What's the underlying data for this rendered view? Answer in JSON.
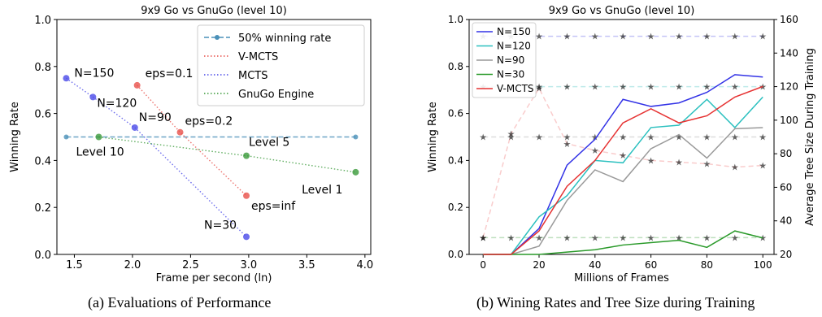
{
  "chart_data": [
    {
      "type": "scatter",
      "title": "9x9 Go vs GnuGo (level 10)",
      "xlabel": "Frame per second (ln)",
      "ylabel": "Winning Rate",
      "xlim": [
        1.35,
        4.05
      ],
      "ylim": [
        0.0,
        1.0
      ],
      "xticks": [
        "1.5",
        "2.0",
        "2.5",
        "3.0",
        "3.5",
        "4.0"
      ],
      "yticks": [
        "0.0",
        "0.2",
        "0.4",
        "0.6",
        "0.8",
        "1.0"
      ],
      "legend": "top-right",
      "series": [
        {
          "name": "50% winning rate",
          "color": "#4a90b8",
          "style": "dashed",
          "points": [
            [
              1.43,
              0.5
            ],
            [
              3.92,
              0.5
            ]
          ]
        },
        {
          "name": "V-MCTS",
          "color": "#e8504a",
          "style": "dotted",
          "points": [
            [
              2.04,
              0.72,
              "eps=0.1"
            ],
            [
              2.41,
              0.52,
              "eps=0.2"
            ],
            [
              2.98,
              0.25,
              "eps=inf"
            ]
          ]
        },
        {
          "name": "MCTS",
          "color": "#4a4ae8",
          "style": "dotted",
          "points": [
            [
              1.43,
              0.75,
              "N=150"
            ],
            [
              1.66,
              0.67,
              "N=120"
            ],
            [
              2.02,
              0.54,
              "N=90"
            ],
            [
              2.98,
              0.075,
              "N=30"
            ]
          ]
        },
        {
          "name": "GnuGo Engine",
          "color": "#3a9a3a",
          "style": "dotted",
          "points": [
            [
              1.71,
              0.5,
              "Level 10"
            ],
            [
              2.98,
              0.42,
              "Level 5"
            ],
            [
              3.92,
              0.35,
              "Level 1"
            ]
          ]
        }
      ]
    },
    {
      "type": "line",
      "title": "9x9 Go vs GnuGo (level 10)",
      "xlabel": "Millions of Frames",
      "ylabel": "Winning Rate",
      "y2label": "Average Tree Size During Training",
      "xlim": [
        -5,
        104
      ],
      "ylim": [
        0.0,
        1.0
      ],
      "y2lim": [
        20,
        160
      ],
      "xticks": [
        "0",
        "20",
        "40",
        "60",
        "80",
        "100"
      ],
      "yticks": [
        "0.0",
        "0.2",
        "0.4",
        "0.6",
        "0.8",
        "1.0"
      ],
      "y2ticks": [
        "20",
        "40",
        "60",
        "80",
        "100",
        "120",
        "140",
        "160"
      ],
      "legend": "top-left",
      "x": [
        0,
        10,
        20,
        30,
        40,
        50,
        60,
        70,
        80,
        90,
        100
      ],
      "series": [
        {
          "name": "N=150",
          "color": "#3232e6",
          "values": [
            0.0,
            0.0,
            0.11,
            0.38,
            0.49,
            0.66,
            0.63,
            0.645,
            0.69,
            0.765,
            0.755
          ]
        },
        {
          "name": "N=120",
          "color": "#2bc0bf",
          "values": [
            0.0,
            0.0,
            0.16,
            0.25,
            0.4,
            0.39,
            0.54,
            0.55,
            0.66,
            0.54,
            0.67
          ]
        },
        {
          "name": "N=90",
          "color": "#999999",
          "values": [
            0.0,
            0.0,
            0.035,
            0.23,
            0.36,
            0.31,
            0.45,
            0.51,
            0.41,
            0.535,
            0.54
          ]
        },
        {
          "name": "N=30",
          "color": "#2a9a2a",
          "values": [
            0.0,
            0.0,
            0.0,
            0.01,
            0.02,
            0.04,
            0.05,
            0.06,
            0.03,
            0.1,
            0.07
          ]
        },
        {
          "name": "V-MCTS",
          "color": "#e63232",
          "values": [
            0.0,
            0.0,
            0.1,
            0.29,
            0.4,
            0.56,
            0.62,
            0.56,
            0.59,
            0.67,
            0.715
          ]
        }
      ],
      "tree_size_series": [
        {
          "color": "#6a6ae8",
          "axis": "right",
          "values": [
            150,
            150,
            150,
            150,
            150,
            150,
            150,
            150,
            150,
            150,
            150
          ]
        },
        {
          "color": "#5acac8",
          "axis": "right",
          "values": [
            120,
            120,
            120,
            120,
            120,
            120,
            120,
            120,
            120,
            120,
            120
          ]
        },
        {
          "color": "#aaaaaa",
          "axis": "right",
          "values": [
            90,
            90,
            90,
            90,
            90,
            90,
            90,
            90,
            90,
            90,
            90
          ]
        },
        {
          "color": "#5ab05a",
          "axis": "right",
          "values": [
            30,
            30,
            30,
            30,
            30,
            30,
            30,
            30,
            30,
            30,
            30
          ]
        },
        {
          "color": "#f08080",
          "axis": "right",
          "values": [
            30,
            92,
            119,
            86,
            82,
            79,
            76,
            75,
            74,
            72,
            73
          ]
        }
      ]
    }
  ],
  "captions": {
    "left": "(a) Evaluations of Performance",
    "right": "(b) Wining Rates and Tree Size during Training"
  }
}
